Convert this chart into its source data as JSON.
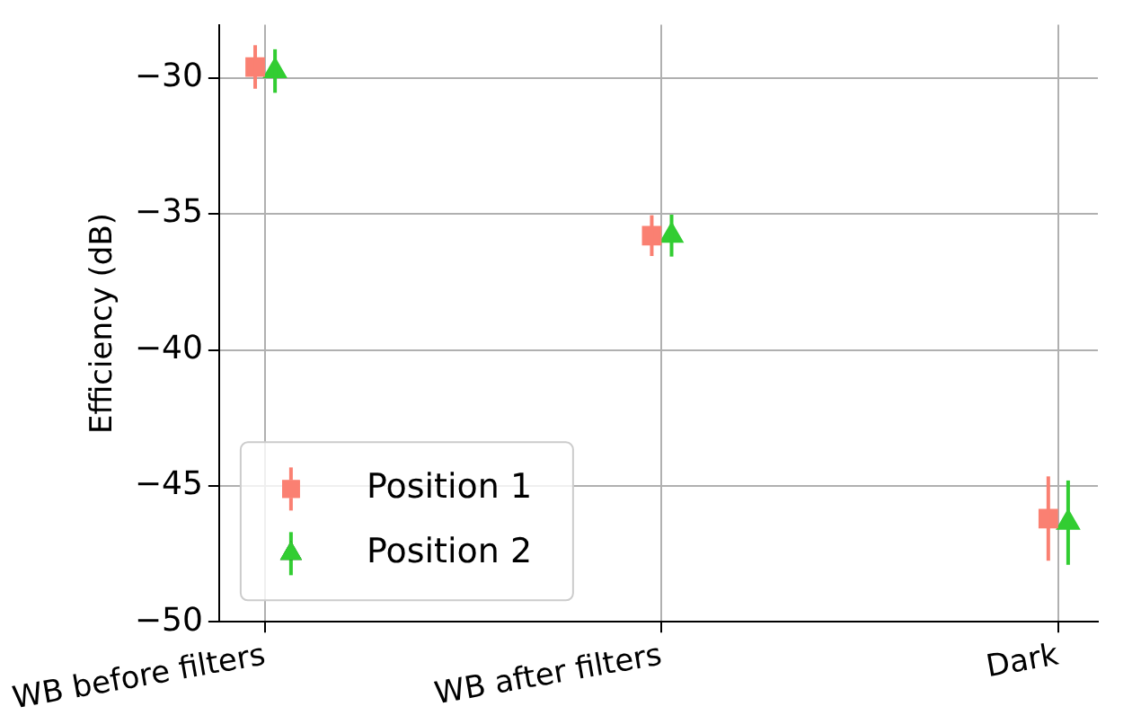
{
  "chart_data": {
    "type": "scatter",
    "ylabel": "Efficiency (dB)",
    "categories": [
      "WB before filters",
      "WB after filters",
      "Dark"
    ],
    "series": [
      {
        "name": "Position 1",
        "color": "#fa8072",
        "marker": "square",
        "values": [
          -29.6,
          -35.8,
          -46.2
        ],
        "errors": [
          0.8,
          0.75,
          1.55
        ]
      },
      {
        "name": "Position 2",
        "color": "#32cd32",
        "marker": "triangle",
        "values": [
          -29.75,
          -35.8,
          -46.35
        ],
        "errors": [
          0.8,
          0.77,
          1.55
        ]
      }
    ],
    "ylim": [
      -50,
      -28.05
    ],
    "yticks": [
      -50,
      -45,
      -40,
      -35,
      -30
    ],
    "grid": true,
    "legend": "bottom left"
  }
}
